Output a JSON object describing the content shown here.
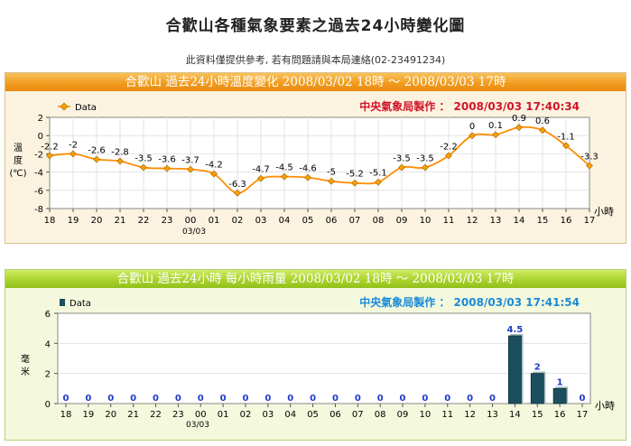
{
  "page": {
    "title": "合歡山各種氣象要素之過去24小時變化圖",
    "notice": "此資料僅提供參考, 若有問題請與本局連絡(02-23491234)"
  },
  "chart_data": [
    {
      "type": "line",
      "header": "合歡山  過去24小時溫度變化  2008/03/02  18時  ～  2008/03/03  17時",
      "credit": "中央氣象局製作 ： 2008/03/03  17:40:34",
      "legend": "Data",
      "ylabel": "溫度(℃)",
      "xlabel": "小時",
      "date_label": "03/03",
      "ylim": [
        -8,
        2
      ],
      "yticks": [
        2,
        0,
        -2,
        -4,
        -6,
        -8
      ],
      "categories": [
        "18",
        "19",
        "20",
        "21",
        "22",
        "23",
        "00",
        "01",
        "02",
        "03",
        "04",
        "05",
        "06",
        "07",
        "08",
        "09",
        "10",
        "11",
        "12",
        "13",
        "14",
        "15",
        "16",
        "17"
      ],
      "series": [
        {
          "name": "Data",
          "values": [
            -2.2,
            -2,
            -2.6,
            -2.8,
            -3.5,
            -3.6,
            -3.7,
            -4.2,
            -6.3,
            -4.7,
            -4.5,
            -4.6,
            -5,
            -5.2,
            -5.1,
            -3.5,
            -3.5,
            -2.2,
            0,
            0.1,
            0.9,
            0.6,
            -1.1,
            -3.3
          ]
        }
      ],
      "colors": {
        "line": "#ff8c00",
        "marker": "#f5a000"
      }
    },
    {
      "type": "bar",
      "header": "合歡山  過去24小時  每小時雨量  2008/03/02  18時  ～  2008/03/03  17時",
      "credit": "中央氣象局製作 ： 2008/03/03  17:41:54",
      "legend": "Data",
      "ylabel": "毫米",
      "xlabel": "小時",
      "date_label": "03/03",
      "ylim": [
        0,
        6
      ],
      "yticks": [
        6,
        4,
        2,
        0
      ],
      "categories": [
        "18",
        "19",
        "20",
        "21",
        "22",
        "23",
        "00",
        "01",
        "02",
        "03",
        "04",
        "05",
        "06",
        "07",
        "08",
        "09",
        "10",
        "11",
        "12",
        "13",
        "14",
        "15",
        "16",
        "17"
      ],
      "series": [
        {
          "name": "Data",
          "values": [
            0,
            0,
            0,
            0,
            0,
            0,
            0,
            0,
            0,
            0,
            0,
            0,
            0,
            0,
            0,
            0,
            0,
            0,
            0,
            0,
            4.5,
            2,
            1,
            0
          ]
        }
      ],
      "colors": {
        "bar": "#1c4f5e",
        "value_label": "#1a3cc8"
      }
    }
  ]
}
